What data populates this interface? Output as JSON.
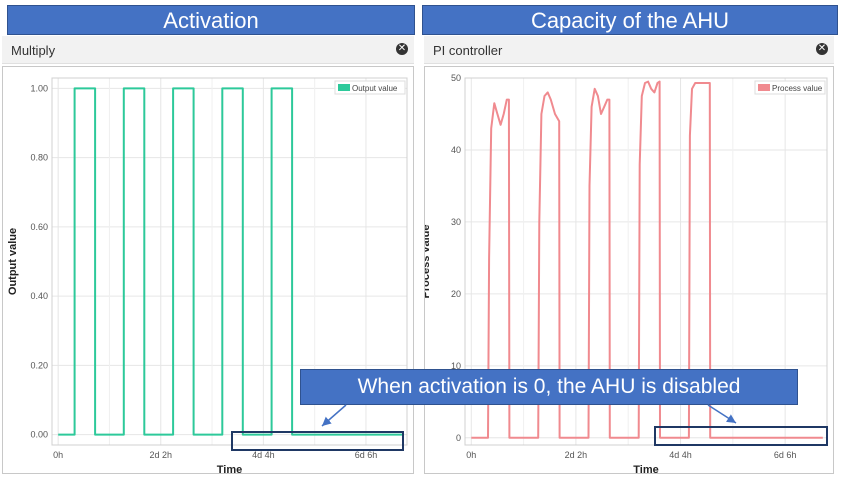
{
  "banners": {
    "left": "Activation",
    "right": "Capacity of the AHU"
  },
  "panels": {
    "left": {
      "title": "Multiply",
      "close_icon": "x-circle-icon"
    },
    "right": {
      "title": "PI controller",
      "close_icon": "x-circle-icon"
    }
  },
  "callout": "When activation is 0, the AHU is disabled",
  "colors": {
    "output_series": "#2dc99a",
    "process_series": "#f08a8f",
    "banner": "#4472c4",
    "highlight_border": "#1f3864"
  },
  "chart_data": [
    {
      "type": "line",
      "title": "",
      "xlabel": "Time",
      "ylabel": "Output value",
      "x_ticks": [
        "0h",
        "2d 2h",
        "4d 4h",
        "6d 6h"
      ],
      "x_tick_hours": [
        0,
        50,
        100,
        150
      ],
      "xlim_hours": [
        -3,
        170
      ],
      "y_ticks": [
        "0.00",
        "0.20",
        "0.40",
        "0.60",
        "0.80",
        "1.00"
      ],
      "ylim": [
        -0.03,
        1.03
      ],
      "grid": true,
      "legend": {
        "position": "top-right",
        "entries": [
          "Output value"
        ]
      },
      "series": [
        {
          "name": "Output value",
          "points": [
            [
              0,
              0
            ],
            [
              8,
              0
            ],
            [
              8,
              1
            ],
            [
              18,
              1
            ],
            [
              18,
              0
            ],
            [
              32,
              0
            ],
            [
              32,
              1
            ],
            [
              42,
              1
            ],
            [
              42,
              0
            ],
            [
              56,
              0
            ],
            [
              56,
              1
            ],
            [
              66,
              1
            ],
            [
              66,
              0
            ],
            [
              80,
              0
            ],
            [
              80,
              1
            ],
            [
              90,
              1
            ],
            [
              90,
              0
            ],
            [
              104,
              0
            ],
            [
              104,
              1
            ],
            [
              114,
              1
            ],
            [
              114,
              0
            ],
            [
              168,
              0
            ]
          ]
        }
      ]
    },
    {
      "type": "line",
      "title": "",
      "xlabel": "Time",
      "ylabel": "Process value",
      "x_ticks": [
        "0h",
        "2d 2h",
        "4d 4h",
        "6d 6h"
      ],
      "x_tick_hours": [
        0,
        50,
        100,
        150
      ],
      "xlim_hours": [
        -3,
        170
      ],
      "y_ticks": [
        "0",
        "10",
        "20",
        "30",
        "40",
        "50"
      ],
      "ylim": [
        -1,
        50
      ],
      "grid": true,
      "legend": {
        "position": "top-right",
        "entries": [
          "Process value"
        ]
      },
      "series": [
        {
          "name": "Process value",
          "points": [
            [
              0,
              0
            ],
            [
              8,
              0
            ],
            [
              8.5,
              25
            ],
            [
              9.5,
              43
            ],
            [
              11,
              46.5
            ],
            [
              12.5,
              45
            ],
            [
              14,
              43.5
            ],
            [
              15.5,
              45
            ],
            [
              17,
              47
            ],
            [
              18,
              47
            ],
            [
              18.2,
              0
            ],
            [
              32,
              0
            ],
            [
              32.5,
              30
            ],
            [
              33.5,
              45
            ],
            [
              35,
              47.5
            ],
            [
              36.5,
              48
            ],
            [
              38,
              47
            ],
            [
              40,
              45
            ],
            [
              42,
              44
            ],
            [
              42.2,
              0
            ],
            [
              56,
              0
            ],
            [
              56.5,
              35
            ],
            [
              57.5,
              46
            ],
            [
              59,
              48.5
            ],
            [
              60.5,
              47.5
            ],
            [
              62,
              45
            ],
            [
              63.5,
              46
            ],
            [
              65,
              47
            ],
            [
              66,
              47
            ],
            [
              66.2,
              0
            ],
            [
              80,
              0
            ],
            [
              80.5,
              38
            ],
            [
              81.5,
              47.5
            ],
            [
              83,
              49.3
            ],
            [
              84.5,
              49.5
            ],
            [
              86,
              48.5
            ],
            [
              87.5,
              48
            ],
            [
              89,
              49.3
            ],
            [
              90,
              49.5
            ],
            [
              90.2,
              0
            ],
            [
              104,
              0
            ],
            [
              104.5,
              42
            ],
            [
              105.5,
              48.5
            ],
            [
              107,
              49.3
            ],
            [
              110,
              49.3
            ],
            [
              114,
              49.3
            ],
            [
              114.2,
              0
            ],
            [
              168,
              0
            ]
          ]
        }
      ]
    }
  ]
}
